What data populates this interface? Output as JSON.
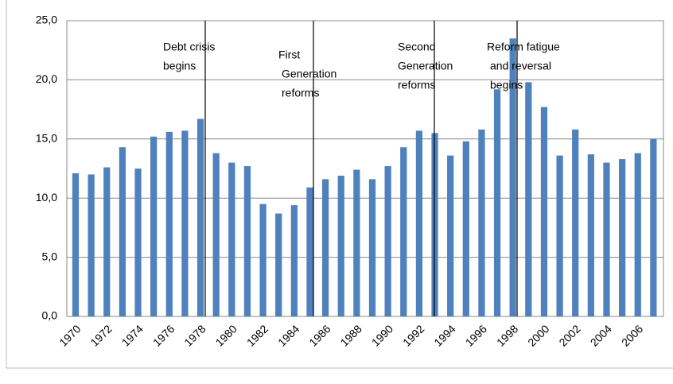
{
  "chart_data": {
    "type": "bar",
    "categories": [
      "1970",
      null,
      "1972",
      null,
      "1974",
      null,
      "1976",
      null,
      "1978",
      null,
      "1980",
      null,
      "1982",
      null,
      "1984",
      null,
      "1986",
      null,
      "1988",
      null,
      "1990",
      null,
      "1992",
      null,
      "1994",
      null,
      "1996",
      null,
      "1998",
      null,
      "2000",
      null,
      "2002",
      null,
      "2004",
      null,
      "2006",
      null
    ],
    "values": [
      12.1,
      12.0,
      12.6,
      14.3,
      12.5,
      15.2,
      15.6,
      15.7,
      16.7,
      13.8,
      13.0,
      12.7,
      9.5,
      8.7,
      9.4,
      10.9,
      11.6,
      11.9,
      12.4,
      11.6,
      12.7,
      14.3,
      15.7,
      15.5,
      13.6,
      14.8,
      15.8,
      19.2,
      23.5,
      19.8,
      17.7,
      13.6,
      15.8,
      13.7,
      13.0,
      13.3,
      13.8,
      15.0
    ],
    "color": "#4f81bd",
    "ylim": [
      0,
      25
    ],
    "yticks": [
      {
        "value": 0,
        "label": "0,0"
      },
      {
        "value": 5,
        "label": "5,0"
      },
      {
        "value": 10,
        "label": "10,0"
      },
      {
        "value": 15,
        "label": "15,0"
      },
      {
        "value": 20,
        "label": "20,0"
      },
      {
        "value": 25,
        "label": "25,0"
      }
    ],
    "grid": true,
    "annotations": [
      {
        "lines": [
          "Debt crisis",
          "begins"
        ]
      },
      {
        "lines": [
          "First",
          "Generation",
          "reforms"
        ]
      },
      {
        "lines": [
          "Second",
          "Generation",
          "reforms"
        ]
      },
      {
        "lines": [
          "Reform fatigue",
          "and reversal",
          "begins"
        ]
      }
    ]
  }
}
